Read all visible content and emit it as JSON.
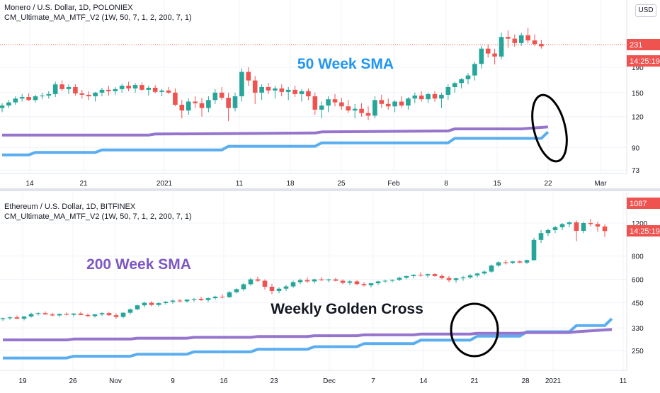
{
  "colors": {
    "up": "#26a69a",
    "down": "#ef5350",
    "sma_fast": "#5aaef0",
    "sma_slow": "#9575cd",
    "annot_blue": "#2196f3",
    "annot_purple": "#7e57c2",
    "axis_text": "#131722",
    "price_tag": "#ef5350"
  },
  "currency_button": "USD",
  "chart_data": [
    {
      "type": "candlestick",
      "title": "Monero / U.S. Dollar, 1D, POLONIEX",
      "subtitle": "CM_Ultimate_MA_MTF_V2 (1W, 50, 7, 1, 2, 200, 7, 1)",
      "annotation": "50 Week SMA",
      "y_ticks": [
        73,
        90,
        120,
        150,
        190
      ],
      "price_tag": "231",
      "time_tag": "14:25:19",
      "x_labels": [
        "14",
        "21",
        "2021",
        "11",
        "18",
        "25",
        "Feb",
        "8",
        "15",
        "22",
        "Mar"
      ],
      "ohlc": [
        [
          130,
          136,
          125,
          133
        ],
        [
          133,
          140,
          130,
          137
        ],
        [
          137,
          145,
          134,
          142
        ],
        [
          142,
          148,
          138,
          144
        ],
        [
          144,
          149,
          139,
          140
        ],
        [
          140,
          147,
          137,
          145
        ],
        [
          145,
          150,
          141,
          146
        ],
        [
          146,
          152,
          142,
          148
        ],
        [
          148,
          166,
          144,
          162
        ],
        [
          162,
          168,
          152,
          155
        ],
        [
          155,
          162,
          148,
          158
        ],
        [
          158,
          162,
          146,
          149
        ],
        [
          149,
          154,
          142,
          147
        ],
        [
          147,
          152,
          140,
          145
        ],
        [
          145,
          151,
          138,
          150
        ],
        [
          150,
          157,
          145,
          154
        ],
        [
          154,
          160,
          146,
          152
        ],
        [
          152,
          158,
          147,
          155
        ],
        [
          155,
          163,
          150,
          160
        ],
        [
          160,
          166,
          152,
          156
        ],
        [
          156,
          164,
          150,
          161
        ],
        [
          161,
          165,
          152,
          154
        ],
        [
          154,
          160,
          146,
          157
        ],
        [
          157,
          161,
          149,
          151
        ],
        [
          151,
          155,
          145,
          153
        ],
        [
          153,
          158,
          148,
          150
        ],
        [
          150,
          156,
          132,
          134
        ],
        [
          134,
          140,
          118,
          127
        ],
        [
          127,
          142,
          122,
          138
        ],
        [
          138,
          145,
          130,
          136
        ],
        [
          136,
          143,
          120,
          130
        ],
        [
          130,
          145,
          125,
          140
        ],
        [
          140,
          155,
          135,
          150
        ],
        [
          150,
          158,
          140,
          143
        ],
        [
          143,
          150,
          115,
          130
        ],
        [
          130,
          150,
          126,
          145
        ],
        [
          145,
          188,
          138,
          182
        ],
        [
          182,
          190,
          160,
          168
        ],
        [
          168,
          175,
          135,
          150
        ],
        [
          150,
          162,
          140,
          158
        ],
        [
          158,
          164,
          148,
          153
        ],
        [
          153,
          160,
          142,
          156
        ],
        [
          156,
          162,
          145,
          151
        ],
        [
          151,
          158,
          140,
          154
        ],
        [
          154,
          160,
          144,
          148
        ],
        [
          148,
          155,
          138,
          152
        ],
        [
          152,
          156,
          140,
          145
        ],
        [
          145,
          150,
          122,
          128
        ],
        [
          128,
          138,
          118,
          133
        ],
        [
          133,
          145,
          125,
          141
        ],
        [
          141,
          148,
          132,
          137
        ],
        [
          137,
          143,
          128,
          132
        ],
        [
          132,
          140,
          124,
          127
        ],
        [
          127,
          135,
          118,
          129
        ],
        [
          129,
          136,
          120,
          124
        ],
        [
          124,
          132,
          116,
          121
        ],
        [
          121,
          145,
          118,
          140
        ],
        [
          140,
          147,
          130,
          135
        ],
        [
          135,
          142,
          128,
          132
        ],
        [
          132,
          140,
          125,
          138
        ],
        [
          138,
          145,
          130,
          133
        ],
        [
          133,
          144,
          128,
          142
        ],
        [
          142,
          150,
          136,
          146
        ],
        [
          146,
          152,
          138,
          141
        ],
        [
          141,
          150,
          136,
          148
        ],
        [
          148,
          152,
          138,
          142
        ],
        [
          142,
          150,
          130,
          147
        ],
        [
          147,
          162,
          140,
          158
        ],
        [
          158,
          166,
          150,
          164
        ],
        [
          164,
          172,
          156,
          170
        ],
        [
          170,
          180,
          162,
          176
        ],
        [
          176,
          200,
          168,
          196
        ],
        [
          196,
          232,
          188,
          226
        ],
        [
          226,
          235,
          208,
          216
        ],
        [
          216,
          226,
          195,
          210
        ],
        [
          210,
          262,
          205,
          252
        ],
        [
          252,
          268,
          228,
          248
        ],
        [
          248,
          258,
          230,
          238
        ],
        [
          238,
          262,
          232,
          256
        ],
        [
          256,
          275,
          238,
          244
        ],
        [
          244,
          258,
          232,
          236
        ],
        [
          236,
          245,
          226,
          231
        ]
      ],
      "sma_fast": [
        [
          0,
          84
        ],
        [
          4,
          84
        ],
        [
          5,
          86
        ],
        [
          14,
          86
        ],
        [
          15,
          88
        ],
        [
          33,
          88
        ],
        [
          34,
          91
        ],
        [
          47,
          91
        ],
        [
          48,
          94
        ],
        [
          67,
          94
        ],
        [
          68,
          98
        ],
        [
          81,
          98
        ],
        [
          82,
          104
        ]
      ],
      "sma_slow": [
        [
          0,
          101
        ],
        [
          22,
          101
        ],
        [
          23,
          102
        ],
        [
          47,
          103
        ],
        [
          48,
          104
        ],
        [
          67,
          105
        ],
        [
          68,
          107
        ],
        [
          78,
          107
        ],
        [
          82,
          109
        ]
      ]
    },
    {
      "type": "candlestick",
      "title": "Ethereum / U.S. Dollar, 1D, BITFINEX",
      "subtitle": "CM_Ultimate_MA_MTF_V2 (1W, 50, 7, 1, 2, 200, 7, 1)",
      "annotations": [
        "200 Week SMA",
        "Weekly Golden Cross"
      ],
      "y_ticks": [
        250,
        330,
        450,
        600,
        800,
        1200
      ],
      "price_tag": "1087",
      "time_tag": "14:25:19",
      "x_labels": [
        "19",
        "26",
        "Nov",
        "9",
        "16",
        "23",
        "Dec",
        "7",
        "14",
        "21",
        "28",
        "2021",
        "11"
      ],
      "ohlc": [
        [
          368,
          375,
          360,
          372
        ],
        [
          372,
          380,
          365,
          376
        ],
        [
          376,
          385,
          368,
          370
        ],
        [
          370,
          382,
          362,
          380
        ],
        [
          380,
          398,
          375,
          392
        ],
        [
          392,
          400,
          385,
          396
        ],
        [
          396,
          404,
          388,
          390
        ],
        [
          390,
          398,
          380,
          385
        ],
        [
          385,
          395,
          378,
          392
        ],
        [
          392,
          400,
          385,
          388
        ],
        [
          388,
          396,
          380,
          394
        ],
        [
          394,
          402,
          386,
          387
        ],
        [
          387,
          395,
          378,
          382
        ],
        [
          382,
          392,
          375,
          390
        ],
        [
          390,
          400,
          382,
          396
        ],
        [
          396,
          402,
          384,
          386
        ],
        [
          386,
          394,
          370,
          378
        ],
        [
          378,
          400,
          372,
          398
        ],
        [
          398,
          420,
          390,
          415
        ],
        [
          415,
          440,
          410,
          436
        ],
        [
          436,
          455,
          425,
          450
        ],
        [
          450,
          460,
          430,
          438
        ],
        [
          438,
          452,
          428,
          448
        ],
        [
          448,
          460,
          440,
          455
        ],
        [
          455,
          470,
          445,
          462
        ],
        [
          462,
          472,
          452,
          458
        ],
        [
          458,
          470,
          450,
          468
        ],
        [
          468,
          478,
          455,
          472
        ],
        [
          472,
          485,
          460,
          465
        ],
        [
          465,
          480,
          455,
          476
        ],
        [
          476,
          490,
          468,
          485
        ],
        [
          485,
          500,
          475,
          482
        ],
        [
          482,
          520,
          478,
          512
        ],
        [
          512,
          540,
          505,
          532
        ],
        [
          532,
          575,
          520,
          565
        ],
        [
          565,
          612,
          555,
          600
        ],
        [
          600,
          620,
          580,
          590
        ],
        [
          590,
          600,
          530,
          548
        ],
        [
          548,
          568,
          500,
          520
        ],
        [
          520,
          545,
          505,
          535
        ],
        [
          535,
          560,
          520,
          550
        ],
        [
          550,
          590,
          540,
          580
        ],
        [
          580,
          605,
          565,
          595
        ],
        [
          595,
          615,
          575,
          585
        ],
        [
          585,
          605,
          570,
          600
        ],
        [
          600,
          618,
          588,
          594
        ],
        [
          594,
          605,
          580,
          600
        ],
        [
          600,
          612,
          585,
          590
        ],
        [
          590,
          600,
          565,
          575
        ],
        [
          575,
          595,
          560,
          585
        ],
        [
          585,
          596,
          560,
          566
        ],
        [
          566,
          580,
          550,
          558
        ],
        [
          558,
          575,
          545,
          572
        ],
        [
          572,
          590,
          560,
          585
        ],
        [
          585,
          598,
          575,
          590
        ],
        [
          590,
          600,
          578,
          596
        ],
        [
          596,
          620,
          588,
          612
        ],
        [
          612,
          630,
          600,
          625
        ],
        [
          625,
          640,
          610,
          635
        ],
        [
          635,
          655,
          620,
          630
        ],
        [
          630,
          645,
          615,
          640
        ],
        [
          640,
          648,
          620,
          625
        ],
        [
          625,
          638,
          600,
          610
        ],
        [
          610,
          625,
          580,
          595
        ],
        [
          595,
          612,
          575,
          608
        ],
        [
          608,
          625,
          590,
          615
        ],
        [
          615,
          640,
          605,
          630
        ],
        [
          630,
          650,
          615,
          645
        ],
        [
          645,
          670,
          635,
          660
        ],
        [
          660,
          720,
          650,
          712
        ],
        [
          712,
          750,
          700,
          740
        ],
        [
          740,
          760,
          720,
          735
        ],
        [
          735,
          755,
          725,
          748
        ],
        [
          748,
          760,
          730,
          738
        ],
        [
          738,
          765,
          725,
          760
        ],
        [
          760,
          1000,
          755,
          975
        ],
        [
          975,
          1100,
          940,
          1060
        ],
        [
          1060,
          1120,
          1020,
          1100
        ],
        [
          1100,
          1160,
          1060,
          1140
        ],
        [
          1140,
          1200,
          1100,
          1185
        ],
        [
          1185,
          1225,
          1140,
          1210
        ],
        [
          1210,
          1240,
          960,
          1090
        ],
        [
          1090,
          1220,
          1060,
          1200
        ],
        [
          1200,
          1260,
          1150,
          1185
        ],
        [
          1185,
          1220,
          1080,
          1150
        ],
        [
          1150,
          1180,
          1010,
          1087
        ]
      ],
      "sma_fast": [
        [
          0,
          228
        ],
        [
          9,
          228
        ],
        [
          10,
          233
        ],
        [
          18,
          233
        ],
        [
          19,
          239
        ],
        [
          26,
          239
        ],
        [
          27,
          246
        ],
        [
          35,
          246
        ],
        [
          36,
          254
        ],
        [
          43,
          254
        ],
        [
          44,
          262
        ],
        [
          50,
          262
        ],
        [
          51,
          272
        ],
        [
          58,
          272
        ],
        [
          59,
          284
        ],
        [
          66,
          284
        ],
        [
          67,
          298
        ],
        [
          73,
          298
        ],
        [
          74,
          315
        ],
        [
          80,
          315
        ],
        [
          81,
          340
        ],
        [
          85,
          340
        ],
        [
          86,
          370
        ]
      ],
      "sma_slow": [
        [
          0,
          285
        ],
        [
          9,
          285
        ],
        [
          10,
          288
        ],
        [
          18,
          288
        ],
        [
          19,
          291
        ],
        [
          26,
          291
        ],
        [
          27,
          294
        ],
        [
          35,
          294
        ],
        [
          36,
          297
        ],
        [
          43,
          297
        ],
        [
          44,
          300
        ],
        [
          50,
          300
        ],
        [
          51,
          303
        ],
        [
          58,
          303
        ],
        [
          59,
          306
        ],
        [
          66,
          306
        ],
        [
          67,
          309
        ],
        [
          73,
          309
        ],
        [
          74,
          312
        ],
        [
          80,
          312
        ],
        [
          81,
          315
        ],
        [
          86,
          324
        ]
      ]
    }
  ]
}
